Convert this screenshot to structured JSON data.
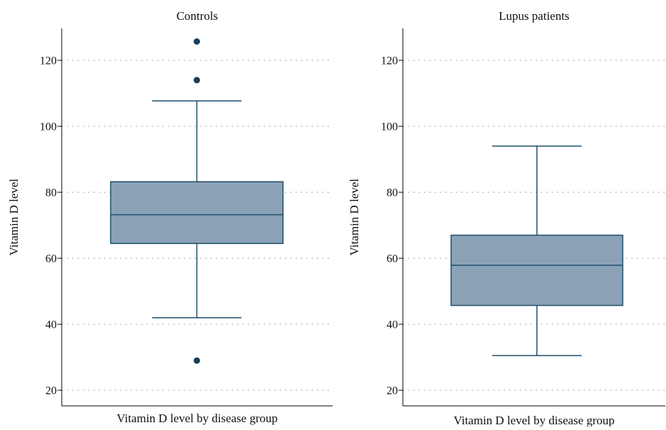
{
  "colors": {
    "box_fill": "#8ba2b6",
    "box_stroke": "#1f4e6b",
    "outlier": "#173e5c",
    "grid": "#9a9a9a",
    "axis": "#000000"
  },
  "chart_data": [
    {
      "type": "boxplot",
      "title": "Controls",
      "xlabel": "Vitamin D level by disease group",
      "ylabel": "Vitamin D level",
      "ylim": [
        15,
        130
      ],
      "yticks": [
        20,
        40,
        60,
        80,
        100,
        120
      ],
      "grid": "horizontal-dotted",
      "box": {
        "whisker_low": 42,
        "q1": 64.5,
        "median": 73.2,
        "q3": 83.2,
        "whisker_high": 107.7
      },
      "outliers": [
        29,
        114,
        125.7
      ]
    },
    {
      "type": "boxplot",
      "title": "Lupus patients",
      "xlabel": "Vitamin D level by disease group",
      "ylabel": "Vitamin D level",
      "ylim": [
        15,
        130
      ],
      "yticks": [
        20,
        40,
        60,
        80,
        100,
        120
      ],
      "grid": "horizontal-dotted",
      "box": {
        "whisker_low": 30.5,
        "q1": 45.7,
        "median": 57.9,
        "q3": 67,
        "whisker_high": 94
      },
      "outliers": []
    }
  ]
}
